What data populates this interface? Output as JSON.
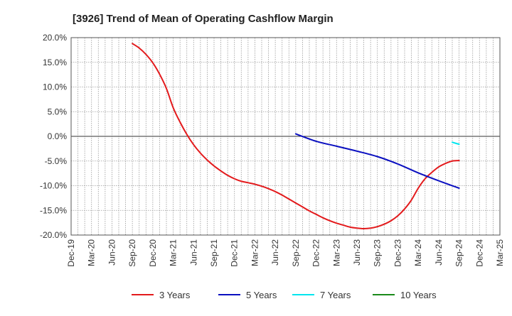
{
  "title": "[3926]  Trend of Mean of Operating Cashflow Margin",
  "chart_data": {
    "type": "line",
    "title": "[3926]  Trend of Mean of Operating Cashflow Margin",
    "xlabel": "",
    "ylabel": "",
    "ylim": [
      -20,
      20
    ],
    "y_ticks": [
      20,
      15,
      10,
      5,
      0,
      -5,
      -10,
      -15,
      -20
    ],
    "y_tick_labels": [
      "20.0%",
      "15.0%",
      "10.0%",
      "5.0%",
      "0.0%",
      "-5.0%",
      "-10.0%",
      "-15.0%",
      "-20.0%"
    ],
    "x_tick_labels": [
      "Dec-19",
      "Mar-20",
      "Jun-20",
      "Sep-20",
      "Dec-20",
      "Mar-21",
      "Jun-21",
      "Sep-21",
      "Dec-21",
      "Mar-22",
      "Jun-22",
      "Sep-22",
      "Dec-22",
      "Mar-23",
      "Jun-23",
      "Sep-23",
      "Dec-23",
      "Mar-24",
      "Jun-24",
      "Sep-24",
      "Dec-24",
      "Mar-25"
    ],
    "grid": true,
    "legend_position": "bottom",
    "series": [
      {
        "name": "3 Years",
        "color": "#e31a1c",
        "points": [
          [
            "Sep-20",
            18.8
          ],
          [
            "Oct-20",
            17.9
          ],
          [
            "Nov-20",
            16.6
          ],
          [
            "Dec-20",
            14.9
          ],
          [
            "Jan-21",
            12.6
          ],
          [
            "Feb-21",
            9.7
          ],
          [
            "Mar-21",
            5.8
          ],
          [
            "Apr-21",
            2.9
          ],
          [
            "May-21",
            0.4
          ],
          [
            "Jun-21",
            -1.7
          ],
          [
            "Jul-21",
            -3.4
          ],
          [
            "Aug-21",
            -4.8
          ],
          [
            "Sep-21",
            -6.0
          ],
          [
            "Oct-21",
            -7.0
          ],
          [
            "Nov-21",
            -7.9
          ],
          [
            "Dec-21",
            -8.6
          ],
          [
            "Jan-22",
            -9.1
          ],
          [
            "Feb-22",
            -9.4
          ],
          [
            "Mar-22",
            -9.7
          ],
          [
            "Apr-22",
            -10.1
          ],
          [
            "May-22",
            -10.6
          ],
          [
            "Jun-22",
            -11.2
          ],
          [
            "Jul-22",
            -11.9
          ],
          [
            "Aug-22",
            -12.7
          ],
          [
            "Sep-22",
            -13.5
          ],
          [
            "Oct-22",
            -14.3
          ],
          [
            "Nov-22",
            -15.1
          ],
          [
            "Dec-22",
            -15.8
          ],
          [
            "Jan-23",
            -16.5
          ],
          [
            "Feb-23",
            -17.1
          ],
          [
            "Mar-23",
            -17.6
          ],
          [
            "Apr-23",
            -18.0
          ],
          [
            "May-23",
            -18.4
          ],
          [
            "Jun-23",
            -18.6
          ],
          [
            "Jul-23",
            -18.7
          ],
          [
            "Aug-23",
            -18.6
          ],
          [
            "Sep-23",
            -18.3
          ],
          [
            "Oct-23",
            -17.8
          ],
          [
            "Nov-23",
            -17.1
          ],
          [
            "Dec-23",
            -16.1
          ],
          [
            "Jan-24",
            -14.7
          ],
          [
            "Feb-24",
            -12.9
          ],
          [
            "Mar-24",
            -10.5
          ],
          [
            "Apr-24",
            -8.6
          ],
          [
            "May-24",
            -7.3
          ],
          [
            "Jun-24",
            -6.2
          ],
          [
            "Jul-24",
            -5.5
          ],
          [
            "Aug-24",
            -5.0
          ],
          [
            "Sep-24",
            -4.9
          ]
        ]
      },
      {
        "name": "5 Years",
        "color": "#0a0fc0",
        "points": [
          [
            "Sep-22",
            0.5
          ],
          [
            "Dec-22",
            -1.0
          ],
          [
            "Mar-23",
            -2.0
          ],
          [
            "Jun-23",
            -3.0
          ],
          [
            "Sep-23",
            -4.1
          ],
          [
            "Dec-23",
            -5.6
          ],
          [
            "Mar-24",
            -7.4
          ],
          [
            "Jun-24",
            -9.0
          ],
          [
            "Sep-24",
            -10.5
          ]
        ]
      },
      {
        "name": "7 Years",
        "color": "#00e5ee",
        "points": [
          [
            "Aug-24",
            -1.2
          ],
          [
            "Sep-24",
            -1.6
          ]
        ]
      },
      {
        "name": "10 Years",
        "color": "#1a8a1a",
        "points": []
      }
    ]
  }
}
